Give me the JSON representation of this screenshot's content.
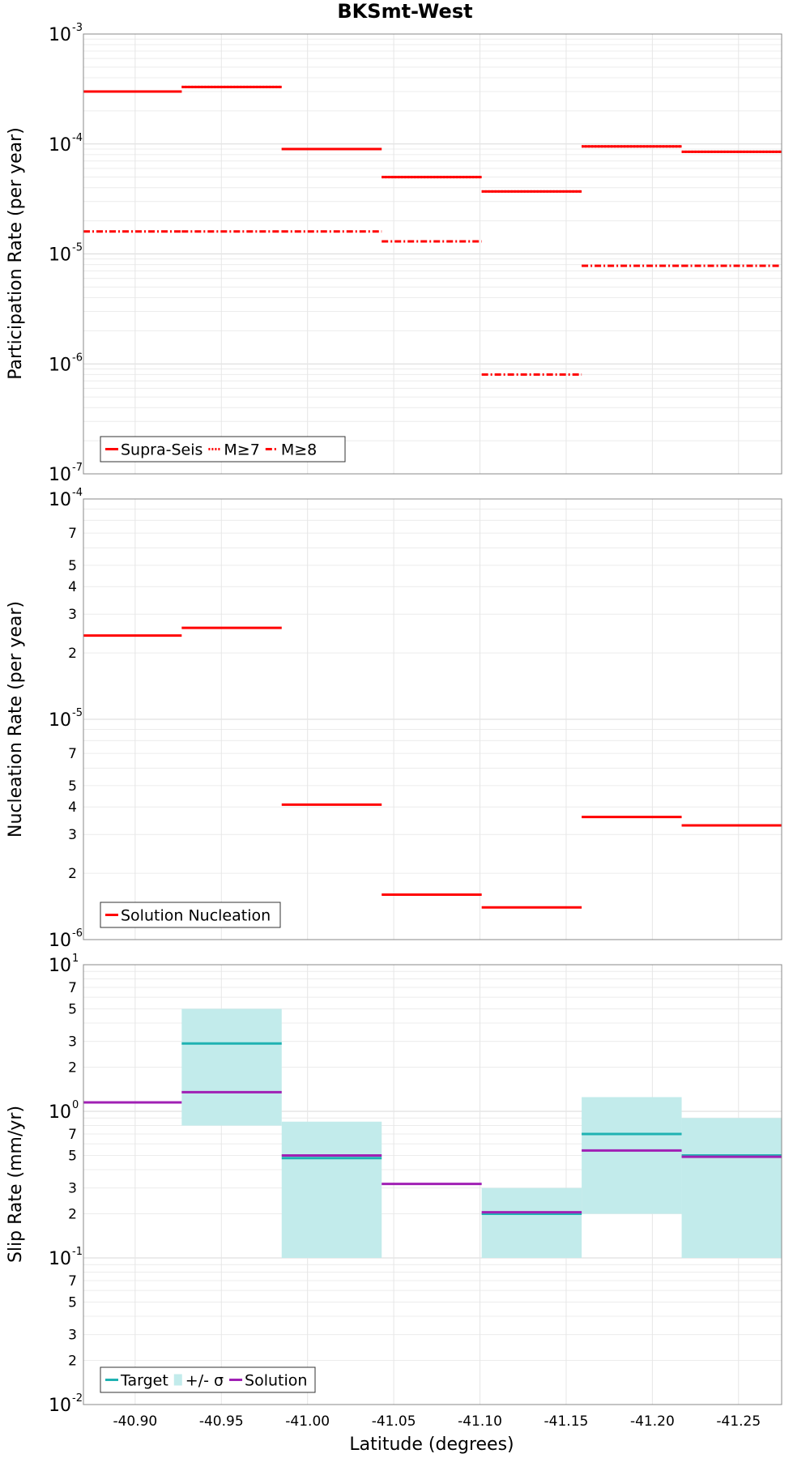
{
  "title": "BKSmt-West",
  "xlabel": "Latitude (degrees)",
  "colors": {
    "red": "#ff0000",
    "target": "#1fb2b2",
    "band": "#c2ebeb",
    "solution": "#a020b4"
  },
  "chart_data": [
    {
      "type": "line",
      "ylabel": "Participation Rate (per year)",
      "yscale": "log",
      "ylim": [
        1e-07,
        0.001
      ],
      "xlim": [
        -40.87,
        -41.275
      ],
      "grid": true,
      "legend_position": "bottom-left",
      "series": [
        {
          "name": "Supra-Seis",
          "style": "solid",
          "segments": [
            {
              "x": [
                -40.87,
                -40.927
              ],
              "y": 0.0003
            },
            {
              "x": [
                -40.927,
                -40.985
              ],
              "y": 0.00033
            },
            {
              "x": [
                -40.985,
                -41.043
              ],
              "y": 9e-05
            },
            {
              "x": [
                -41.043,
                -41.101
              ],
              "y": 5e-05
            },
            {
              "x": [
                -41.101,
                -41.159
              ],
              "y": 3.7e-05
            },
            {
              "x": [
                -41.159,
                -41.217
              ],
              "y": 9.5e-05
            },
            {
              "x": [
                -41.217,
                -41.275
              ],
              "y": 8.5e-05
            }
          ]
        },
        {
          "name": "M≥7",
          "style": "dotted",
          "segments": [
            {
              "x": [
                -40.87,
                -40.927
              ],
              "y": 0.0003
            },
            {
              "x": [
                -40.927,
                -40.985
              ],
              "y": 0.00033
            },
            {
              "x": [
                -40.985,
                -41.043
              ],
              "y": 9e-05
            },
            {
              "x": [
                -41.043,
                -41.101
              ],
              "y": 5e-05
            },
            {
              "x": [
                -41.101,
                -41.159
              ],
              "y": 3.7e-05
            },
            {
              "x": [
                -41.159,
                -41.217
              ],
              "y": 9.5e-05
            },
            {
              "x": [
                -41.217,
                -41.275
              ],
              "y": 8.5e-05
            }
          ]
        },
        {
          "name": "M≥8",
          "style": "dashdot",
          "segments": [
            {
              "x": [
                -40.87,
                -40.927
              ],
              "y": 1.6e-05
            },
            {
              "x": [
                -40.927,
                -40.985
              ],
              "y": 1.6e-05
            },
            {
              "x": [
                -40.985,
                -41.043
              ],
              "y": 1.6e-05
            },
            {
              "x": [
                -41.043,
                -41.101
              ],
              "y": 1.3e-05
            },
            {
              "x": [
                -41.101,
                -41.159
              ],
              "y": 8e-07
            },
            {
              "x": [
                -41.159,
                -41.217
              ],
              "y": 7.8e-06
            },
            {
              "x": [
                -41.217,
                -41.275
              ],
              "y": 7.8e-06
            }
          ]
        }
      ]
    },
    {
      "type": "line",
      "ylabel": "Nucleation Rate (per year)",
      "yscale": "log",
      "ylim": [
        1e-06,
        0.0001
      ],
      "xlim": [
        -40.87,
        -41.275
      ],
      "grid": true,
      "legend_position": "bottom-left",
      "series": [
        {
          "name": "Solution Nucleation",
          "style": "solid",
          "segments": [
            {
              "x": [
                -40.87,
                -40.927
              ],
              "y": 2.4e-05
            },
            {
              "x": [
                -40.927,
                -40.985
              ],
              "y": 2.6e-05
            },
            {
              "x": [
                -40.985,
                -41.043
              ],
              "y": 4.1e-06
            },
            {
              "x": [
                -41.043,
                -41.101
              ],
              "y": 1.6e-06
            },
            {
              "x": [
                -41.101,
                -41.159
              ],
              "y": 1.4e-06
            },
            {
              "x": [
                -41.159,
                -41.217
              ],
              "y": 3.6e-06
            },
            {
              "x": [
                -41.217,
                -41.275
              ],
              "y": 3.3e-06
            }
          ]
        }
      ]
    },
    {
      "type": "line",
      "ylabel": "Slip Rate (mm/yr)",
      "yscale": "log",
      "ylim": [
        0.01,
        10
      ],
      "xlim": [
        -40.87,
        -41.275
      ],
      "grid": true,
      "legend_position": "bottom-left",
      "bands": {
        "name": "+/- σ",
        "segments": [
          {
            "x": [
              -40.927,
              -40.985
            ],
            "low": 0.8,
            "high": 5.0
          },
          {
            "x": [
              -40.985,
              -41.043
            ],
            "low": 0.1,
            "high": 0.85
          },
          {
            "x": [
              -41.101,
              -41.159
            ],
            "low": 0.1,
            "high": 0.3
          },
          {
            "x": [
              -41.159,
              -41.217
            ],
            "low": 0.2,
            "high": 1.25
          },
          {
            "x": [
              -41.217,
              -41.275
            ],
            "low": 0.1,
            "high": 0.9
          }
        ]
      },
      "series": [
        {
          "name": "Target",
          "style": "solid",
          "segments": [
            {
              "x": [
                -40.927,
                -40.985
              ],
              "y": 2.9
            },
            {
              "x": [
                -40.985,
                -41.043
              ],
              "y": 0.48
            },
            {
              "x": [
                -41.101,
                -41.159
              ],
              "y": 0.2
            },
            {
              "x": [
                -41.159,
                -41.217
              ],
              "y": 0.7
            },
            {
              "x": [
                -41.217,
                -41.275
              ],
              "y": 0.5
            }
          ]
        },
        {
          "name": "Solution",
          "style": "solid",
          "segments": [
            {
              "x": [
                -40.87,
                -40.927
              ],
              "y": 1.15
            },
            {
              "x": [
                -40.927,
                -40.985
              ],
              "y": 1.35
            },
            {
              "x": [
                -40.985,
                -41.043
              ],
              "y": 0.5
            },
            {
              "x": [
                -41.043,
                -41.101
              ],
              "y": 0.32
            },
            {
              "x": [
                -41.101,
                -41.159
              ],
              "y": 0.205
            },
            {
              "x": [
                -41.159,
                -41.217
              ],
              "y": 0.54
            },
            {
              "x": [
                -41.217,
                -41.275
              ],
              "y": 0.49
            }
          ]
        }
      ]
    }
  ],
  "x_ticks": [
    "-40.90",
    "-40.95",
    "-41.00",
    "-41.05",
    "-41.10",
    "-41.15",
    "-41.20",
    "-41.25"
  ],
  "x_tick_values": [
    -40.9,
    -40.95,
    -41.0,
    -41.05,
    -41.1,
    -41.15,
    -41.2,
    -41.25
  ],
  "panel1_decades": [
    {
      "base": "10",
      "exp": "-3",
      "value": 0.001
    },
    {
      "base": "10",
      "exp": "-4",
      "value": 0.0001
    },
    {
      "base": "10",
      "exp": "-5",
      "value": 1e-05
    },
    {
      "base": "10",
      "exp": "-6",
      "value": 1e-06
    },
    {
      "base": "10",
      "exp": "-7",
      "value": 1e-07
    }
  ],
  "panel2_decades": [
    {
      "base": "10",
      "exp": "-4",
      "value": 0.0001
    },
    {
      "base": "10",
      "exp": "-5",
      "value": 1e-05
    },
    {
      "base": "10",
      "exp": "-6",
      "value": 1e-06
    }
  ],
  "panel2_minor": [
    {
      "label": "7",
      "value": 7e-05
    },
    {
      "label": "5",
      "value": 5e-05
    },
    {
      "label": "4",
      "value": 4e-05
    },
    {
      "label": "3",
      "value": 3e-05
    },
    {
      "label": "2",
      "value": 2e-05
    },
    {
      "label": "7",
      "value": 7e-06
    },
    {
      "label": "5",
      "value": 5e-06
    },
    {
      "label": "4",
      "value": 4e-06
    },
    {
      "label": "3",
      "value": 3e-06
    },
    {
      "label": "2",
      "value": 2e-06
    }
  ],
  "panel3_decades": [
    {
      "base": "10",
      "exp": "1",
      "value": 10
    },
    {
      "base": "10",
      "exp": "0",
      "value": 1
    },
    {
      "base": "10",
      "exp": "-1",
      "value": 0.1
    },
    {
      "base": "10",
      "exp": "-2",
      "value": 0.01
    }
  ],
  "panel3_minor": [
    {
      "label": "7",
      "value": 7
    },
    {
      "label": "5",
      "value": 5
    },
    {
      "label": "3",
      "value": 3
    },
    {
      "label": "2",
      "value": 2
    },
    {
      "label": "7",
      "value": 0.7
    },
    {
      "label": "5",
      "value": 0.5
    },
    {
      "label": "3",
      "value": 0.3
    },
    {
      "label": "2",
      "value": 0.2
    },
    {
      "label": "7",
      "value": 0.07
    },
    {
      "label": "5",
      "value": 0.05
    },
    {
      "label": "3",
      "value": 0.03
    },
    {
      "label": "2",
      "value": 0.02
    }
  ]
}
